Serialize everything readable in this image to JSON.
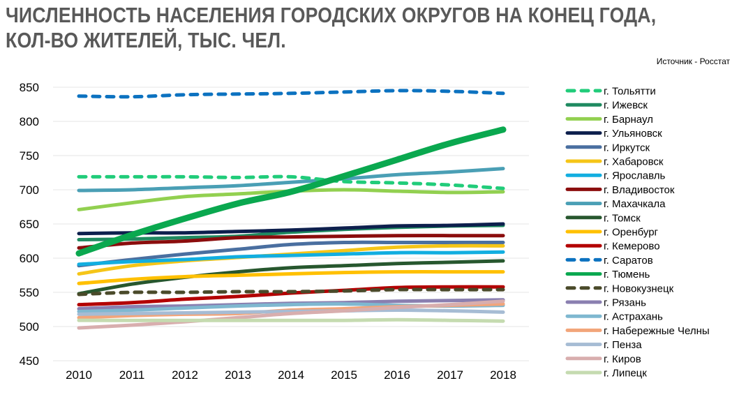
{
  "header": {
    "title_line1": "ЧИСЛЕННОСТЬ НАСЕЛЕНИЯ ГОРОДСКИХ ОКРУГОВ НА КОНЕЦ ГОДА,",
    "title_line2": "КОЛ-ВО ЖИТЕЛЕЙ, ТЫС. ЧЕЛ.",
    "source": "Источник - Росстат"
  },
  "chart_data": {
    "type": "line",
    "title": "ЧИСЛЕННОСТЬ НАСЕЛЕНИЯ ГОРОДСКИХ ОКРУГОВ НА КОНЕЦ ГОДА, КОЛ-ВО ЖИТЕЛЕЙ, ТЫС. ЧЕЛ.",
    "x": [
      "2010",
      "2011",
      "2012",
      "2013",
      "2014",
      "2015",
      "2016",
      "2017",
      "2018"
    ],
    "ylim": [
      450,
      850
    ],
    "yticks": [
      450,
      500,
      550,
      600,
      650,
      700,
      750,
      800,
      850
    ],
    "grid": true,
    "legend_position": "right",
    "series": [
      {
        "name": "г. Тольятти",
        "color": "#21cc7a",
        "dashed": true,
        "bold": false,
        "values": [
          719,
          719,
          719,
          718,
          719,
          712,
          710,
          707,
          702
        ]
      },
      {
        "name": "г. Ижевск",
        "color": "#1f8a60",
        "dashed": false,
        "bold": false,
        "values": [
          627,
          628,
          630,
          632,
          638,
          642,
          645,
          647,
          648
        ]
      },
      {
        "name": "г. Барнаул",
        "color": "#92d050",
        "dashed": false,
        "bold": false,
        "values": [
          671,
          681,
          690,
          694,
          698,
          700,
          698,
          696,
          697
        ]
      },
      {
        "name": "г. Ульяновск",
        "color": "#0d1f4d",
        "dashed": false,
        "bold": false,
        "values": [
          636,
          637,
          637,
          639,
          641,
          644,
          647,
          648,
          650
        ]
      },
      {
        "name": "г. Иркутск",
        "color": "#4a6fa0",
        "dashed": false,
        "bold": false,
        "values": [
          589,
          598,
          606,
          613,
          620,
          623,
          623,
          623,
          623
        ]
      },
      {
        "name": "г. Хабаровск",
        "color": "#f5c518",
        "dashed": false,
        "bold": false,
        "values": [
          577,
          589,
          596,
          601,
          606,
          611,
          616,
          618,
          618
        ]
      },
      {
        "name": "г. Ярославль",
        "color": "#12aee0",
        "dashed": false,
        "bold": false,
        "values": [
          591,
          595,
          598,
          602,
          604,
          606,
          608,
          608,
          609
        ]
      },
      {
        "name": "г. Владивосток",
        "color": "#8b0d0d",
        "dashed": false,
        "bold": false,
        "values": [
          615,
          622,
          625,
          630,
          631,
          632,
          633,
          633,
          633
        ]
      },
      {
        "name": "г. Махачкала",
        "color": "#4a9fb5",
        "dashed": false,
        "bold": false,
        "values": [
          699,
          700,
          703,
          706,
          711,
          716,
          722,
          726,
          731
        ]
      },
      {
        "name": "г. Томск",
        "color": "#27572e",
        "dashed": false,
        "bold": false,
        "values": [
          548,
          562,
          572,
          580,
          586,
          589,
          592,
          594,
          596
        ]
      },
      {
        "name": "г. Оренбург",
        "color": "#ffc000",
        "dashed": false,
        "bold": false,
        "values": [
          563,
          569,
          573,
          575,
          577,
          579,
          580,
          580,
          580
        ]
      },
      {
        "name": "г. Кемерово",
        "color": "#b30000",
        "dashed": false,
        "bold": false,
        "values": [
          532,
          535,
          540,
          544,
          549,
          553,
          557,
          558,
          558
        ]
      },
      {
        "name": "г. Саратов",
        "color": "#0c72c0",
        "dashed": true,
        "bold": false,
        "values": [
          837,
          836,
          839,
          840,
          841,
          843,
          845,
          844,
          841
        ]
      },
      {
        "name": "г. Тюмень",
        "color": "#0aa84f",
        "dashed": false,
        "bold": true,
        "values": [
          607,
          634,
          658,
          680,
          697,
          720,
          744,
          768,
          788
        ]
      },
      {
        "name": "г. Новокузнецк",
        "color": "#4a4a2a",
        "dashed": true,
        "bold": false,
        "values": [
          547,
          550,
          550,
          551,
          551,
          552,
          554,
          554,
          554
        ]
      },
      {
        "name": "г. Рязань",
        "color": "#8a7fb0",
        "dashed": false,
        "bold": false,
        "values": [
          526,
          529,
          530,
          532,
          534,
          535,
          537,
          538,
          539
        ]
      },
      {
        "name": "г. Астрахань",
        "color": "#7fb8d0",
        "dashed": false,
        "bold": false,
        "values": [
          522,
          524,
          527,
          530,
          532,
          533,
          531,
          530,
          531
        ]
      },
      {
        "name": "г. Набережные Челны",
        "color": "#f2a57a",
        "dashed": false,
        "bold": false,
        "values": [
          513,
          516,
          518,
          519,
          524,
          526,
          529,
          531,
          533
        ]
      },
      {
        "name": "г. Пенза",
        "color": "#a6bcd4",
        "dashed": false,
        "bold": false,
        "values": [
          518,
          519,
          520,
          521,
          522,
          523,
          524,
          523,
          521
        ]
      },
      {
        "name": "г. Киров",
        "color": "#d8aeae",
        "dashed": false,
        "bold": false,
        "values": [
          498,
          502,
          507,
          513,
          519,
          523,
          528,
          532,
          537
        ]
      },
      {
        "name": "г. Липецк",
        "color": "#c5dbb0",
        "dashed": false,
        "bold": false,
        "values": [
          509,
          509,
          509,
          509,
          509,
          509,
          510,
          509,
          508
        ]
      }
    ]
  }
}
